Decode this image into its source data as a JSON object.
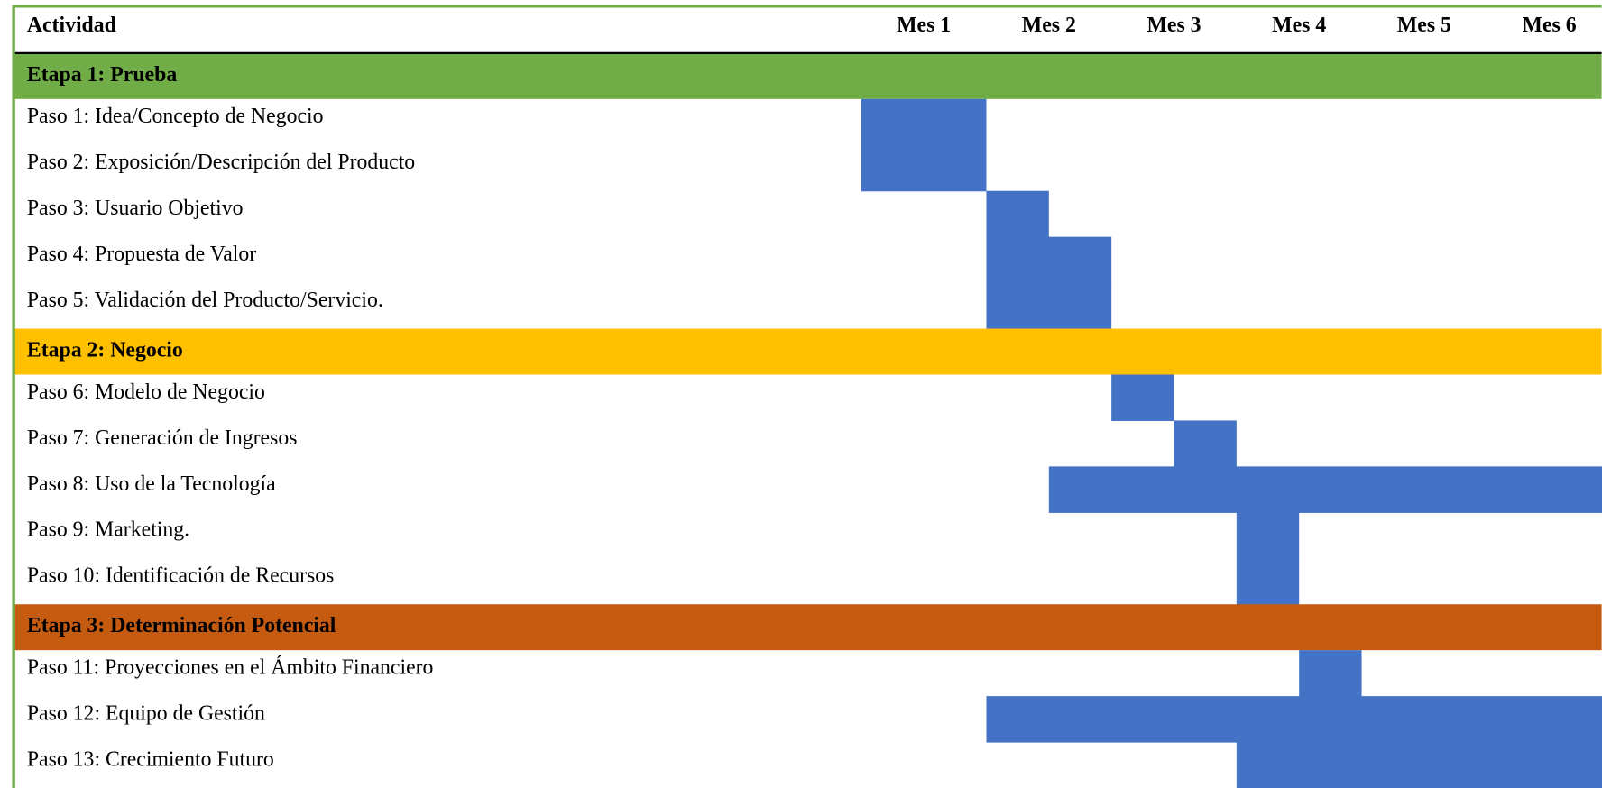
{
  "header": {
    "activity": "Actividad",
    "months": [
      "Mes 1",
      "Mes 2",
      "Mes 3",
      "Mes 4",
      "Mes 5",
      "Mes 6"
    ]
  },
  "bar_color": "#4472c4",
  "stages": [
    {
      "title": "Etapa 1: Prueba",
      "color": "#70ad47",
      "tasks": [
        {
          "label": "Paso 1: Idea/Concepto de Negocio",
          "start": 0,
          "end": 1
        },
        {
          "label": "Paso 2: Exposición/Descripción del Producto",
          "start": 0,
          "end": 1
        },
        {
          "label": "Paso 3: Usuario Objetivo",
          "start": 1,
          "end": 1.5
        },
        {
          "label": "Paso 4: Propuesta de Valor",
          "start": 1,
          "end": 2
        },
        {
          "label": "Paso 5: Validación del Producto/Servicio.",
          "start": 1,
          "end": 2
        }
      ]
    },
    {
      "title": "Etapa 2: Negocio",
      "color": "#ffc000",
      "tasks": [
        {
          "label": "Paso 6: Modelo de Negocio",
          "start": 2,
          "end": 2.5
        },
        {
          "label": "Paso 7: Generación de Ingresos",
          "start": 2.5,
          "end": 3
        },
        {
          "label": "Paso 8: Uso de la Tecnología",
          "start": 1.5,
          "end": 6
        },
        {
          "label": "Paso 9: Marketing.",
          "start": 3,
          "end": 3.5
        },
        {
          "label": "Paso 10: Identificación de Recursos",
          "start": 3,
          "end": 3.5
        }
      ]
    },
    {
      "title": "Etapa 3: Determinación Potencial",
      "color": "#c55a11",
      "tasks": [
        {
          "label": "Paso 11: Proyecciones en el Ámbito Financiero",
          "start": 3.5,
          "end": 4
        },
        {
          "label": "Paso 12: Equipo de Gestión",
          "start": 1,
          "end": 6
        },
        {
          "label": "Paso 13: Crecimiento Futuro",
          "start": 3,
          "end": 6
        }
      ]
    }
  ]
}
